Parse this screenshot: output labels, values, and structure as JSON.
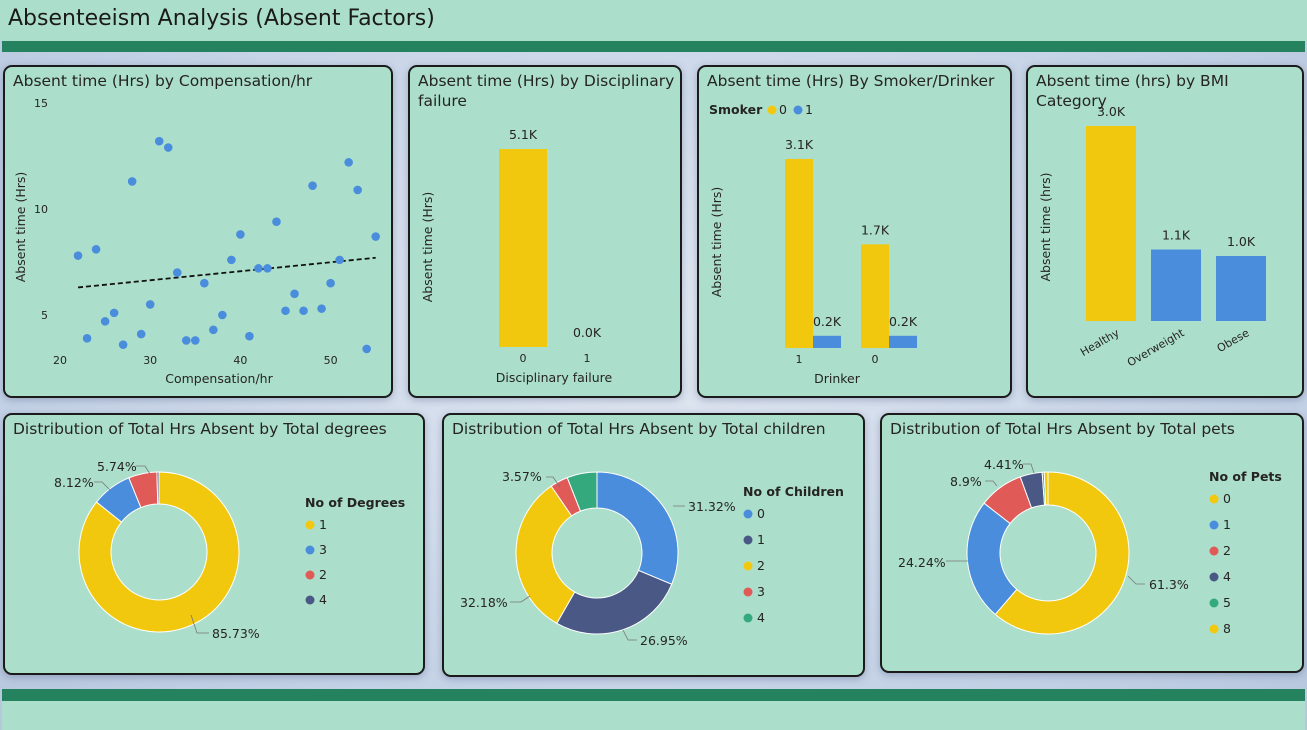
{
  "page": {
    "title": "Absenteeism Analysis (Absent Factors)"
  },
  "colors": {
    "yellow": "#f2c80f",
    "blue": "#4a8ddd",
    "red": "#e05a57",
    "navy": "#4a5886",
    "green": "#35a97e",
    "bg": "#acdfcb",
    "bar": "#25825f"
  },
  "scatter": {
    "title": "Absent time (Hrs) by Compensation/hr",
    "xlabel": "Compensation/hr",
    "ylabel": "Absent time (Hrs)",
    "xticks": [
      "20",
      "30",
      "40",
      "50"
    ],
    "yticks": [
      "15",
      "10",
      "5"
    ]
  },
  "disciplinary": {
    "title": "Absent time (Hrs) by Disciplinary failure",
    "xlabel": "Disciplinary failure",
    "ylabel": "Absent time (Hrs)",
    "bar_labels": [
      "5.1K",
      "0.0K"
    ]
  },
  "smoker": {
    "title": "Absent time (Hrs) By Smoker/Drinker",
    "legend_title": "Smoker",
    "legend": [
      "0",
      "1"
    ],
    "xlabel": "Drinker",
    "ylabel": "Absent time (Hrs)",
    "bar_labels": [
      "3.1K",
      "0.2K",
      "1.7K",
      "0.2K"
    ]
  },
  "bmi": {
    "title": "Absent time (hrs) by BMI Category",
    "ylabel": "Absent time (hrs)",
    "bar_labels": [
      "3.0K",
      "1.1K",
      "1.0K"
    ]
  },
  "degrees": {
    "title": "Distribution of Total Hrs Absent by Total degrees",
    "legend_title": "No of Degrees",
    "pct_labels": [
      "85.73%",
      "8.12%",
      "5.74%"
    ]
  },
  "children": {
    "title": "Distribution of Total Hrs Absent by Total children",
    "legend_title": "No of Children",
    "pct_labels": [
      "31.32%",
      "26.95%",
      "32.18%",
      "3.57%"
    ]
  },
  "pets": {
    "title": "Distribution of Total Hrs Absent by Total pets",
    "legend_title": "No of Pets",
    "pct_labels": [
      "61.3%",
      "24.24%",
      "8.9%",
      "4.41%"
    ]
  },
  "chart_data": [
    {
      "type": "scatter",
      "title": "Absent time (Hrs) by Compensation/hr",
      "xlabel": "Compensation/hr",
      "ylabel": "Absent time (Hrs)",
      "xlim": [
        17,
        55
      ],
      "ylim": [
        3.5,
        15.5
      ],
      "trendline": true,
      "trend": [
        [
          22,
          6.3
        ],
        [
          55,
          7.7
        ]
      ],
      "points": [
        [
          22,
          7.8
        ],
        [
          23,
          3.9
        ],
        [
          24,
          8.1
        ],
        [
          25,
          4.7
        ],
        [
          26,
          5.1
        ],
        [
          27,
          3.6
        ],
        [
          28,
          11.3
        ],
        [
          29,
          4.1
        ],
        [
          30,
          5.5
        ],
        [
          31,
          13.2
        ],
        [
          32,
          12.9
        ],
        [
          33,
          7.0
        ],
        [
          34,
          3.8
        ],
        [
          35,
          3.8
        ],
        [
          36,
          6.5
        ],
        [
          37,
          4.3
        ],
        [
          38,
          5.0
        ],
        [
          39,
          7.6
        ],
        [
          40,
          8.8
        ],
        [
          41,
          4.0
        ],
        [
          42,
          7.2
        ],
        [
          43,
          7.2
        ],
        [
          44,
          9.4
        ],
        [
          45,
          5.2
        ],
        [
          46,
          6.0
        ],
        [
          47,
          5.2
        ],
        [
          48,
          11.1
        ],
        [
          49,
          5.3
        ],
        [
          50,
          6.5
        ],
        [
          51,
          7.6
        ],
        [
          52,
          12.2
        ],
        [
          53,
          10.9
        ],
        [
          54,
          3.4
        ],
        [
          55,
          8.7
        ]
      ]
    },
    {
      "type": "bar",
      "title": "Absent time (Hrs) by Disciplinary failure",
      "xlabel": "Disciplinary failure",
      "ylabel": "Absent time (Hrs)",
      "categories": [
        "0",
        "1"
      ],
      "values": [
        5.1,
        0.0
      ],
      "value_unit": "K"
    },
    {
      "type": "bar",
      "title": "Absent time (Hrs) By Smoker/Drinker",
      "xlabel": "Drinker",
      "ylabel": "Absent time (Hrs)",
      "categories": [
        "1",
        "0"
      ],
      "series": [
        {
          "name": "0",
          "values": [
            3.1,
            1.7
          ]
        },
        {
          "name": "1",
          "values": [
            0.2,
            0.2
          ]
        }
      ],
      "value_unit": "K"
    },
    {
      "type": "bar",
      "title": "Absent time (hrs) by BMI Category",
      "ylabel": "Absent time (hrs)",
      "categories": [
        "Healthy",
        "Overweight",
        "Obese"
      ],
      "values": [
        3.0,
        1.1,
        1.0
      ],
      "value_unit": "K"
    },
    {
      "type": "pie",
      "title": "Distribution of Total Hrs Absent by Total degrees",
      "legend_title": "No of Degrees",
      "categories": [
        "1",
        "3",
        "2",
        "4"
      ],
      "values": [
        85.73,
        8.12,
        5.74,
        0.41
      ]
    },
    {
      "type": "pie",
      "title": "Distribution of Total Hrs Absent by Total children",
      "legend_title": "No of Children",
      "categories": [
        "0",
        "1",
        "2",
        "3",
        "4"
      ],
      "values": [
        31.32,
        26.95,
        32.18,
        3.57,
        5.98
      ]
    },
    {
      "type": "pie",
      "title": "Distribution of Total Hrs Absent by Total pets",
      "legend_title": "No of Pets",
      "categories": [
        "0",
        "1",
        "2",
        "4",
        "5",
        "8"
      ],
      "values": [
        61.3,
        24.24,
        8.9,
        4.41,
        0.4,
        0.75
      ]
    }
  ]
}
